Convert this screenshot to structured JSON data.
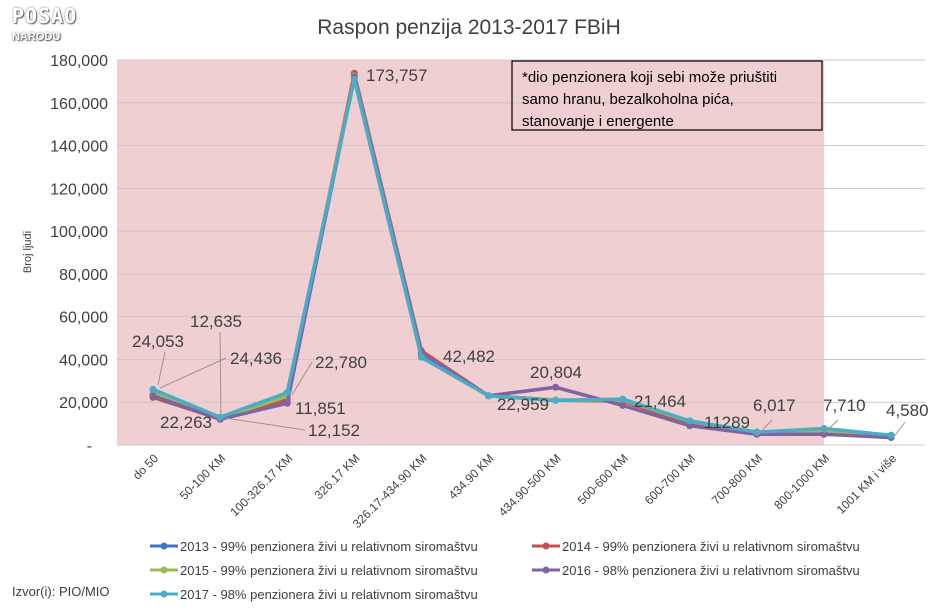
{
  "logo_text": "POSAO NARODU",
  "source": "Izvor(i): PIO/MIO",
  "annotation": [
    "*dio penzionera koji sebi može priuštiti",
    "samo hranu, bezalkoholna pića,",
    "stanovanje i energente"
  ],
  "chart_data": {
    "type": "line",
    "title": "Raspon penzija 2013-2017 FBiH",
    "xlabel": "",
    "ylabel": "Broj ljudi",
    "ylim": [
      0,
      180000
    ],
    "yticks": [
      "-",
      "20,000",
      "40,000",
      "60,000",
      "80,000",
      "100,000",
      "120,000",
      "140,000",
      "160,000",
      "180,000"
    ],
    "grid": true,
    "legend": "bottom",
    "highlight_region": {
      "from": "do 50",
      "to": "800-1000 KM",
      "color": "#efcfd2"
    },
    "categories": [
      "do 50",
      "50-100 KM",
      "100-326.17 KM",
      "326.17 KM",
      "326.17-434.90 KM",
      "434.90 KM",
      "434.90-500 KM",
      "500-600 KM",
      "600-700 KM",
      "700-800 KM",
      "800-1000 KM",
      "1001 KM i više"
    ],
    "series": [
      {
        "name": "2013 - 99% penzionera živi u relativnom siromaštvu",
        "color": "#4472c4",
        "values": [
          24053,
          12635,
          22000,
          173000,
          42000,
          23000,
          21000,
          21000,
          11000,
          6000,
          6000,
          4500
        ]
      },
      {
        "name": "2014 - 99% penzionera živi u relativnom siromaštvu",
        "color": "#c0504d",
        "values": [
          22263,
          12152,
          21000,
          173757,
          44000,
          23000,
          21000,
          20500,
          10000,
          5500,
          5200,
          4000
        ]
      },
      {
        "name": "2015 - 99% penzionera živi u relativnom siromaštvu",
        "color": "#9bbb59",
        "values": [
          24436,
          12500,
          22780,
          172500,
          43000,
          23000,
          21000,
          21000,
          11000,
          6000,
          6500,
          4500
        ]
      },
      {
        "name": "2016 - 98% penzionera živi u relativnom siromaštvu",
        "color": "#8064a2",
        "values": [
          23000,
          12000,
          19500,
          172000,
          43000,
          23000,
          27000,
          18500,
          9000,
          5000,
          5000,
          3500
        ]
      },
      {
        "name": "2017 - 98% penzionera živi u relativnom siromaštvu",
        "color": "#4bacc6",
        "values": [
          26000,
          13000,
          24500,
          171000,
          41000,
          22959,
          20804,
          21464,
          11289,
          6017,
          7710,
          4580
        ]
      }
    ],
    "data_labels": [
      "24,053",
      "12,635",
      "24,436",
      "22,780",
      "11,851",
      "22,263",
      "12,152",
      "173,757",
      "42,482",
      "20,804",
      "22,959",
      "21,464",
      "11289",
      "6,017",
      "7,710",
      "4,580"
    ]
  }
}
